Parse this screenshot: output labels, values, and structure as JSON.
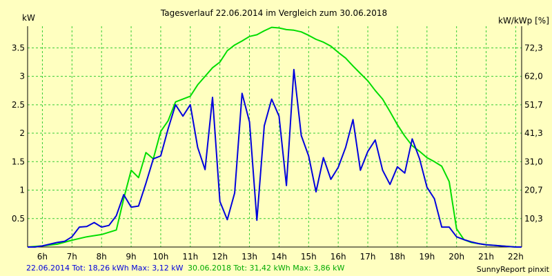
{
  "chart_data": {
    "type": "line",
    "title": "Tagesverlauf 22.06.2014 im Vergleich zum 30.06.2018",
    "ylabel_left": "kW",
    "ylabel_right": "kW/kWp [%]",
    "xlim": [
      5.5,
      22.2
    ],
    "ylim": [
      0,
      3.88
    ],
    "x_ticks": [
      {
        "v": 6,
        "label": "6h"
      },
      {
        "v": 7,
        "label": "7h"
      },
      {
        "v": 8,
        "label": "8h"
      },
      {
        "v": 9,
        "label": "9h"
      },
      {
        "v": 10,
        "label": "10h"
      },
      {
        "v": 11,
        "label": "11h"
      },
      {
        "v": 12,
        "label": "12h"
      },
      {
        "v": 13,
        "label": "13h"
      },
      {
        "v": 14,
        "label": "14h"
      },
      {
        "v": 15,
        "label": "15h"
      },
      {
        "v": 16,
        "label": "16h"
      },
      {
        "v": 17,
        "label": "17h"
      },
      {
        "v": 18,
        "label": "18h"
      },
      {
        "v": 19,
        "label": "19h"
      },
      {
        "v": 20,
        "label": "20h"
      },
      {
        "v": 21,
        "label": "21h"
      },
      {
        "v": 22,
        "label": "22h"
      }
    ],
    "y_ticks_left": [
      {
        "v": 0.5,
        "label": "0.5"
      },
      {
        "v": 1,
        "label": "1"
      },
      {
        "v": 1.5,
        "label": "1.5"
      },
      {
        "v": 2,
        "label": "2"
      },
      {
        "v": 2.5,
        "label": "2.5"
      },
      {
        "v": 3,
        "label": "3"
      },
      {
        "v": 3.5,
        "label": "3.5"
      }
    ],
    "y_ticks_right": [
      {
        "v": 0.5,
        "label": "10,3"
      },
      {
        "v": 1,
        "label": "20,7"
      },
      {
        "v": 1.5,
        "label": "31,0"
      },
      {
        "v": 2,
        "label": "41,3"
      },
      {
        "v": 2.5,
        "label": "51,7"
      },
      {
        "v": 3,
        "label": "62,0"
      },
      {
        "v": 3.5,
        "label": "72,3"
      }
    ],
    "grid": true,
    "series": [
      {
        "color": "#0000dd",
        "x": [
          5.5,
          5.75,
          6.0,
          6.25,
          6.5,
          6.75,
          7.0,
          7.25,
          7.5,
          7.75,
          8.0,
          8.25,
          8.5,
          8.75,
          9.0,
          9.25,
          9.5,
          9.75,
          10.0,
          10.25,
          10.5,
          10.75,
          11.0,
          11.25,
          11.5,
          11.75,
          12.0,
          12.25,
          12.5,
          12.75,
          13.0,
          13.25,
          13.5,
          13.75,
          14.0,
          14.25,
          14.5,
          14.75,
          15.0,
          15.25,
          15.5,
          15.75,
          16.0,
          16.25,
          16.5,
          16.75,
          17.0,
          17.25,
          17.5,
          17.75,
          18.0,
          18.25,
          18.5,
          18.75,
          19.0,
          19.25,
          19.5,
          19.75,
          20.0,
          20.25,
          20.5,
          20.75,
          21.0,
          21.25,
          21.5,
          21.75,
          22.0,
          22.2
        ],
        "values": [
          0.0,
          0.0,
          0.02,
          0.05,
          0.08,
          0.1,
          0.18,
          0.35,
          0.36,
          0.43,
          0.35,
          0.38,
          0.55,
          0.92,
          0.7,
          0.72,
          1.12,
          1.55,
          1.6,
          2.08,
          2.5,
          2.3,
          2.5,
          1.75,
          1.36,
          2.63,
          0.8,
          0.48,
          0.95,
          2.7,
          2.2,
          0.47,
          2.13,
          2.6,
          2.3,
          1.08,
          3.12,
          1.96,
          1.6,
          0.97,
          1.57,
          1.19,
          1.4,
          1.75,
          2.24,
          1.35,
          1.68,
          1.88,
          1.35,
          1.1,
          1.41,
          1.3,
          1.9,
          1.55,
          1.05,
          0.85,
          0.35,
          0.35,
          0.18,
          0.13,
          0.09,
          0.06,
          0.04,
          0.03,
          0.02,
          0.01,
          0.0,
          0.0
        ]
      },
      {
        "color": "#00dd00",
        "x": [
          5.5,
          6.0,
          6.5,
          7.0,
          7.5,
          8.0,
          8.5,
          8.75,
          9.0,
          9.25,
          9.5,
          9.75,
          10.0,
          10.25,
          10.5,
          10.75,
          11.0,
          11.25,
          11.5,
          11.75,
          12.0,
          12.25,
          12.5,
          12.75,
          13.0,
          13.25,
          13.5,
          13.75,
          14.0,
          14.25,
          14.5,
          14.75,
          15.0,
          15.25,
          15.5,
          15.75,
          16.0,
          16.25,
          16.5,
          16.75,
          17.0,
          17.25,
          17.5,
          17.75,
          18.0,
          18.25,
          18.5,
          18.75,
          19.0,
          19.25,
          19.5,
          19.75,
          20.0,
          20.25,
          20.5,
          21.0,
          21.5,
          22.0,
          22.2
        ],
        "values": [
          0.0,
          0.02,
          0.05,
          0.12,
          0.18,
          0.22,
          0.3,
          0.85,
          1.35,
          1.22,
          1.66,
          1.55,
          2.03,
          2.22,
          2.55,
          2.6,
          2.65,
          2.85,
          3.0,
          3.15,
          3.25,
          3.45,
          3.55,
          3.62,
          3.7,
          3.73,
          3.8,
          3.86,
          3.85,
          3.82,
          3.81,
          3.78,
          3.72,
          3.65,
          3.6,
          3.53,
          3.42,
          3.32,
          3.18,
          3.05,
          2.92,
          2.75,
          2.6,
          2.38,
          2.15,
          1.95,
          1.78,
          1.68,
          1.57,
          1.5,
          1.42,
          1.15,
          0.32,
          0.13,
          0.08,
          0.04,
          0.02,
          0.0,
          0.0
        ]
      }
    ]
  },
  "footer": {
    "left_blue": "22.06.2014 Tot: 18,26 kWh Max: 3,12 kW",
    "left_green": "30.06.2018 Tot: 31,42 kWh Max: 3,86 kW",
    "right": "SunnyReport pinxit"
  }
}
